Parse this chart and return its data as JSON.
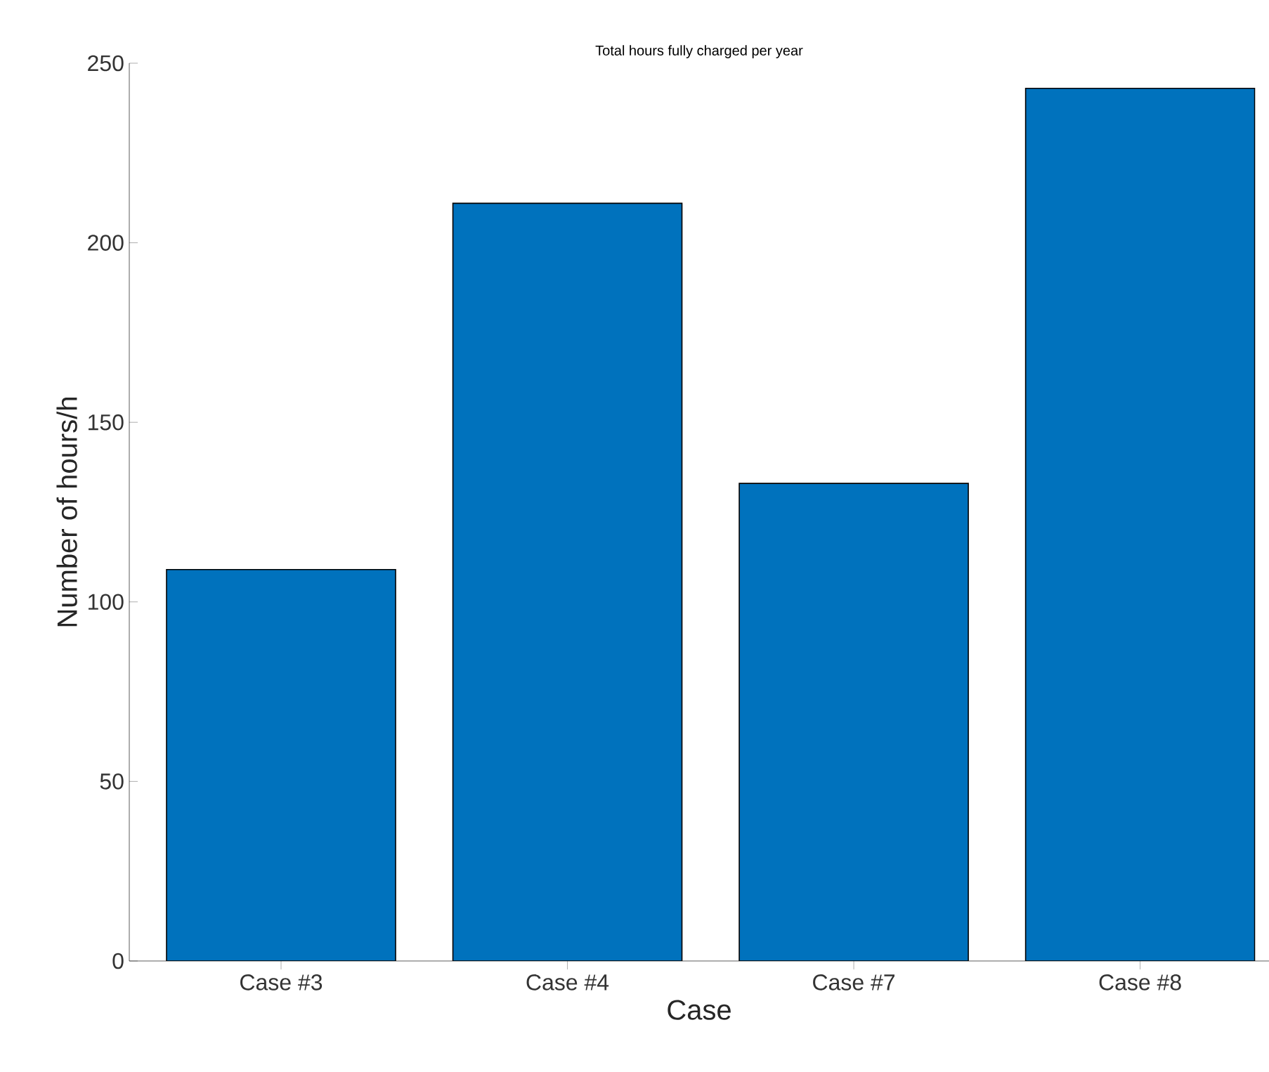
{
  "chart_data": {
    "type": "bar",
    "title": "Total hours fully charged per year",
    "xlabel": "Case",
    "ylabel": "Number of hours/h",
    "categories": [
      "Case #3",
      "Case #4",
      "Case #7",
      "Case #8"
    ],
    "values": [
      109,
      211,
      133,
      243
    ],
    "color": "#0072bd",
    "ylim": [
      0,
      250
    ],
    "yticks": [
      0,
      50,
      100,
      150,
      200,
      250
    ]
  }
}
